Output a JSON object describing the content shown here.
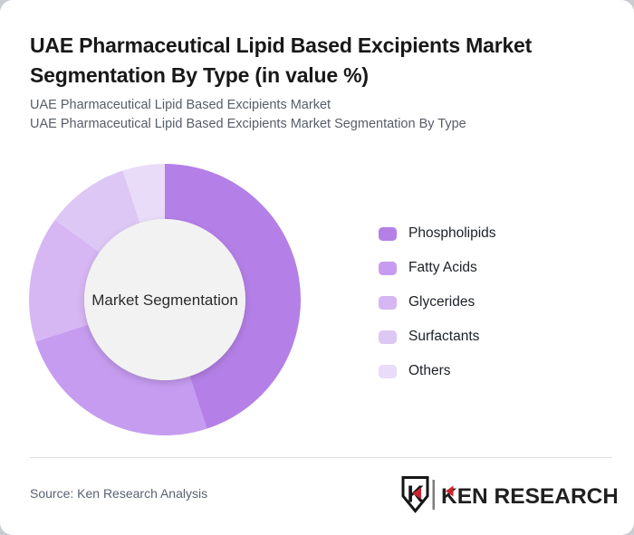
{
  "card": {
    "title": "UAE Pharmaceutical Lipid Based Excipients Market Segmentation By Type (in value %)",
    "subtitle_line1": "UAE Pharmaceutical Lipid Based Excipients Market",
    "subtitle_line2": "UAE Pharmaceutical Lipid Based Excipients Market Segmentation By Type"
  },
  "chart_data": {
    "type": "pie",
    "variant": "donut",
    "title": "UAE Pharmaceutical Lipid Based Excipients Market Segmentation By Type (in value %)",
    "center_label": "Market Segmentation",
    "categories": [
      "Phospholipids",
      "Fatty Acids",
      "Glycerides",
      "Surfactants",
      "Others"
    ],
    "values": [
      45,
      25,
      15,
      10,
      5
    ],
    "unit": "percent of market value",
    "colors": [
      "#b480e7",
      "#c69cf0",
      "#d6b6f3",
      "#ddc8f5",
      "#e9dcf8"
    ],
    "start_angle_deg": 0,
    "clockwise": true,
    "inner_radius_ratio": 0.593,
    "center_circle_color": "#f2f2f2",
    "center_label_color": "#2b2b2b",
    "legend_position": "right"
  },
  "footer": {
    "source": "Source: Ken Research Analysis",
    "logo_badge_letter": "K",
    "logo_text": "KEN RESEARCH",
    "logo_red": "#c9252c",
    "logo_dark": "#1f1f1f"
  }
}
